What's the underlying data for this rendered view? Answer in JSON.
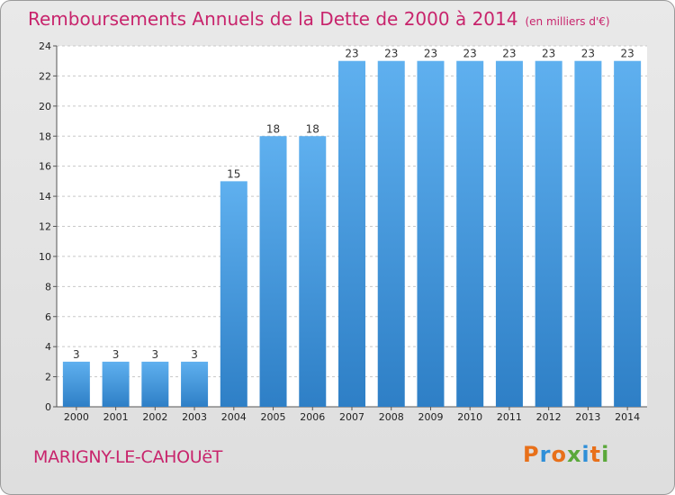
{
  "title": "Remboursements Annuels de la Dette de 2000 à 2014",
  "unit": "(en milliers d'€)",
  "commune": "MARIGNY-LE-CAHOUëT",
  "logo": {
    "letters": [
      "P",
      "r",
      "o",
      "x",
      "i",
      "t",
      "i"
    ],
    "colors": [
      "#e8701a",
      "#2f8fd8",
      "#e8701a",
      "#5aa83a",
      "#2f8fd8",
      "#e8701a",
      "#5aa83a"
    ]
  },
  "colors": {
    "bar_top": "#5fb0ef",
    "bar_bottom": "#2e7fc6",
    "title": "#c8246c"
  },
  "chart_data": {
    "type": "bar",
    "categories": [
      "2000",
      "2001",
      "2002",
      "2003",
      "2004",
      "2005",
      "2006",
      "2007",
      "2008",
      "2009",
      "2010",
      "2011",
      "2012",
      "2013",
      "2014"
    ],
    "values": [
      3,
      3,
      3,
      3,
      15,
      18,
      18,
      23,
      23,
      23,
      23,
      23,
      23,
      23,
      23
    ],
    "title": "Remboursements Annuels de la Dette de 2000 à 2014",
    "xlabel": "",
    "ylabel": "",
    "ylim": [
      0,
      24
    ],
    "yticks": [
      0,
      2,
      4,
      6,
      8,
      10,
      12,
      14,
      16,
      18,
      20,
      22,
      24
    ],
    "grid": true
  }
}
